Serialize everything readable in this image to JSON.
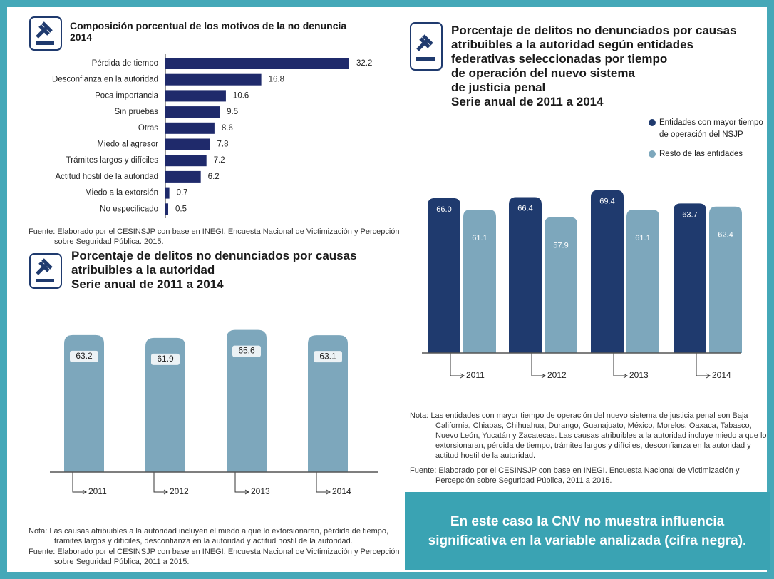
{
  "chart_data": [
    {
      "type": "hbar",
      "title": [
        "Composición porcentual de los motivos de la no denuncia",
        "2014"
      ],
      "categories": [
        "Pérdida de tiempo",
        "Desconfianza en la autoridad",
        "Poca importancia",
        "Sin pruebas",
        "Otras",
        "Miedo al agresor",
        "Trámites largos y difíciles",
        "Actitud hostil de la autoridad",
        "Miedo a la extorsión",
        "No especificado"
      ],
      "values": [
        32.2,
        16.8,
        10.6,
        9.5,
        8.6,
        7.8,
        7.2,
        6.2,
        0.7,
        0.5
      ],
      "color": "#1f2a6b",
      "source": "Fuente: Elaborado por el CESINSJP con base en INEGI. Encuesta Nacional de Victimización y Percepción sobre Seguridad Pública. 2015."
    },
    {
      "type": "bar",
      "title": [
        "Porcentaje de delitos no denunciados por causas",
        "atribuibles a la autoridad",
        "Serie anual de 2011 a 2014"
      ],
      "categories": [
        "2011",
        "2012",
        "2013",
        "2014"
      ],
      "values": [
        63.2,
        61.9,
        65.6,
        63.1
      ],
      "color": "#7da7bc",
      "note": "Nota: Las causas atribuibles a la autoridad incluyen el miedo a que lo extorsionaran, pérdida de tiempo, trámites largos y difíciles, desconfianza en la autoridad y actitud hostil de la autoridad.",
      "source": "Fuente: Elaborado por el CESINSJP con base en INEGI. Encuesta Nacional de Victimización y Percepción sobre Seguridad Pública, 2011 a 2015."
    },
    {
      "type": "grouped_bar",
      "title": [
        "Porcentaje de delitos no denunciados por causas",
        "atribuibles a la autoridad según entidades",
        "federativas seleccionadas por tiempo",
        "de operación del nuevo sistema",
        "de justicia penal",
        "Serie anual de 2011 a 2014"
      ],
      "categories": [
        "2011",
        "2012",
        "2013",
        "2014"
      ],
      "series": [
        {
          "name": "Entidades con mayor tiempo de operación del NSJP",
          "color": "#1f3a6e",
          "values": [
            66.0,
            66.4,
            69.4,
            63.7
          ],
          "value_labels": [
            "66.0",
            "66.4",
            "69.4",
            "63.7"
          ]
        },
        {
          "name": "Resto de las entidades",
          "color": "#7da7bc",
          "values": [
            61.1,
            57.9,
            61.1,
            62.4
          ]
        }
      ],
      "note": "Nota: Las entidades con mayor tiempo de operación del nuevo sistema de justicia penal son Baja California, Chiapas, Chihuahua, Durango, Guanajuato, México, Morelos, Oaxaca, Tabasco, Nuevo León, Yucatán y Zacatecas. Las causas atribuibles a la autoridad incluye miedo a que lo extorsionaran, pérdida de tiempo, trámites largos y difíciles, desconfianza en la autoridad y actitud hostil de la autoridad.",
      "source": "Fuente: Elaborado por el CESINSJP con base en INEGI. Encuesta Nacional de Victimización y Percepción sobre Seguridad Pública, 2011 a 2015."
    }
  ],
  "callout": "En este caso la CNV no muestra influencia significativa en la variable analizada (cifra negra)."
}
